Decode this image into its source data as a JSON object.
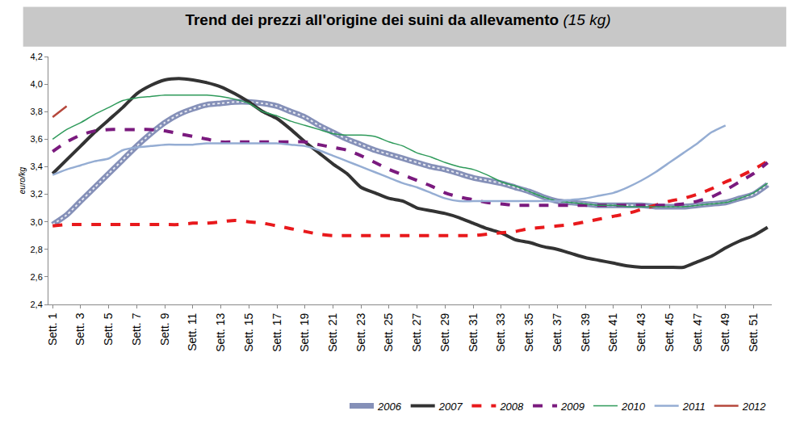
{
  "chart_data": {
    "type": "line",
    "title": "Trend dei prezzi all'origine dei suini da allevamento",
    "subtitle": "(15 kg)",
    "y_label": "euro/kg",
    "grid": false,
    "legend": "bottom",
    "categories": [
      "Sett. 1",
      null,
      "Sett. 3",
      null,
      "Sett. 5",
      null,
      "Sett. 7",
      null,
      "Sett. 9",
      null,
      "Sett. 11",
      null,
      "Sett. 13",
      null,
      "Sett. 15",
      null,
      "Sett. 17",
      null,
      "Sett. 19",
      null,
      "Sett. 21",
      null,
      "Sett. 23",
      null,
      "Sett. 25",
      null,
      "Sett. 27",
      null,
      "Sett. 29",
      null,
      "Sett. 31",
      null,
      "Sett. 33",
      null,
      "Sett. 35",
      null,
      "Sett. 37",
      null,
      "Sett. 39",
      null,
      "Sett. 41",
      null,
      "Sett. 43",
      null,
      "Sett. 45",
      null,
      "Sett. 47",
      null,
      "Sett. 49",
      null,
      "Sett. 51",
      null
    ],
    "ylim": [
      2.4,
      4.2
    ],
    "yticks": [
      {
        "value": 2.4,
        "label": "2,4"
      },
      {
        "value": 2.6,
        "label": "2,6"
      },
      {
        "value": 2.8,
        "label": "2,8"
      },
      {
        "value": 3.0,
        "label": "3,0"
      },
      {
        "value": 3.2,
        "label": "3,2"
      },
      {
        "value": 3.4,
        "label": "3,4"
      },
      {
        "value": 3.6,
        "label": "3,6"
      },
      {
        "value": 3.8,
        "label": "3,8"
      },
      {
        "value": 4.0,
        "label": "4,0"
      },
      {
        "value": 4.2,
        "label": "4,2"
      }
    ],
    "series": [
      {
        "name": "2006",
        "color": "#8590b8",
        "line_style": "hatched",
        "values": [
          2.98,
          3.05,
          3.15,
          3.25,
          3.35,
          3.45,
          3.55,
          3.64,
          3.72,
          3.78,
          3.82,
          3.85,
          3.86,
          3.87,
          3.87,
          3.86,
          3.84,
          3.8,
          3.76,
          3.7,
          3.65,
          3.6,
          3.56,
          3.52,
          3.49,
          3.46,
          3.43,
          3.4,
          3.38,
          3.35,
          3.32,
          3.3,
          3.28,
          3.25,
          3.22,
          3.18,
          3.15,
          3.14,
          3.13,
          3.12,
          3.12,
          3.12,
          3.12,
          3.11,
          3.11,
          3.11,
          3.12,
          3.13,
          3.14,
          3.17,
          3.2,
          3.27
        ]
      },
      {
        "name": "2007",
        "color": "#333333",
        "line_style": "solid",
        "values": [
          3.35,
          3.45,
          3.55,
          3.65,
          3.74,
          3.83,
          3.93,
          3.99,
          4.03,
          4.04,
          4.03,
          4.01,
          3.98,
          3.93,
          3.87,
          3.8,
          3.75,
          3.67,
          3.58,
          3.5,
          3.42,
          3.35,
          3.25,
          3.21,
          3.17,
          3.15,
          3.1,
          3.08,
          3.06,
          3.03,
          2.99,
          2.95,
          2.92,
          2.87,
          2.85,
          2.82,
          2.8,
          2.77,
          2.74,
          2.72,
          2.7,
          2.68,
          2.67,
          2.67,
          2.67,
          2.67,
          2.71,
          2.75,
          2.81,
          2.86,
          2.9,
          2.96
        ]
      },
      {
        "name": "2008",
        "color": "#e8191c",
        "line_style": "dash",
        "values": [
          2.97,
          2.98,
          2.98,
          2.98,
          2.98,
          2.98,
          2.98,
          2.98,
          2.98,
          2.98,
          2.99,
          2.99,
          3.0,
          3.01,
          3.0,
          2.99,
          2.97,
          2.95,
          2.93,
          2.91,
          2.9,
          2.9,
          2.9,
          2.9,
          2.9,
          2.9,
          2.9,
          2.9,
          2.9,
          2.9,
          2.9,
          2.91,
          2.92,
          2.93,
          2.95,
          2.96,
          2.97,
          2.98,
          3.0,
          3.02,
          3.04,
          3.06,
          3.09,
          3.12,
          3.15,
          3.17,
          3.2,
          3.24,
          3.29,
          3.33,
          3.38,
          3.44
        ]
      },
      {
        "name": "2009",
        "color": "#7a1a7e",
        "line_style": "dash",
        "values": [
          3.51,
          3.58,
          3.63,
          3.66,
          3.67,
          3.67,
          3.67,
          3.67,
          3.66,
          3.64,
          3.62,
          3.6,
          3.58,
          3.58,
          3.58,
          3.58,
          3.58,
          3.58,
          3.58,
          3.56,
          3.54,
          3.52,
          3.48,
          3.43,
          3.38,
          3.34,
          3.3,
          3.26,
          3.21,
          3.18,
          3.16,
          3.14,
          3.13,
          3.12,
          3.12,
          3.12,
          3.12,
          3.12,
          3.12,
          3.12,
          3.12,
          3.12,
          3.12,
          3.12,
          3.12,
          3.13,
          3.15,
          3.18,
          3.23,
          3.29,
          3.35,
          3.43
        ]
      },
      {
        "name": "2010",
        "color": "#2e9a5a",
        "line_style": "solid",
        "values": [
          3.6,
          3.67,
          3.72,
          3.78,
          3.83,
          3.88,
          3.9,
          3.91,
          3.92,
          3.92,
          3.92,
          3.92,
          3.91,
          3.89,
          3.86,
          3.8,
          3.77,
          3.73,
          3.7,
          3.67,
          3.64,
          3.63,
          3.63,
          3.62,
          3.58,
          3.55,
          3.5,
          3.47,
          3.43,
          3.4,
          3.38,
          3.34,
          3.29,
          3.26,
          3.22,
          3.18,
          3.15,
          3.14,
          3.13,
          3.12,
          3.12,
          3.11,
          3.11,
          3.11,
          3.11,
          3.11,
          3.12,
          3.13,
          3.14,
          3.17,
          3.21,
          3.28
        ]
      },
      {
        "name": "2011",
        "color": "#95add3",
        "line_style": "solid",
        "values": [
          3.34,
          3.38,
          3.41,
          3.44,
          3.46,
          3.52,
          3.54,
          3.55,
          3.56,
          3.56,
          3.56,
          3.57,
          3.57,
          3.57,
          3.57,
          3.57,
          3.57,
          3.56,
          3.55,
          3.52,
          3.48,
          3.44,
          3.4,
          3.36,
          3.32,
          3.28,
          3.25,
          3.21,
          3.17,
          3.15,
          3.15,
          3.15,
          3.15,
          3.15,
          3.15,
          3.15,
          3.15,
          3.16,
          3.17,
          3.19,
          3.21,
          3.25,
          3.3,
          3.36,
          3.43,
          3.5,
          3.57,
          3.65,
          3.7,
          null,
          null,
          null
        ]
      },
      {
        "name": "2012",
        "color": "#b5473b",
        "line_style": "solid",
        "values": [
          3.76,
          3.84,
          null,
          null,
          null,
          null,
          null,
          null,
          null,
          null,
          null,
          null,
          null,
          null,
          null,
          null,
          null,
          null,
          null,
          null,
          null,
          null,
          null,
          null,
          null,
          null,
          null,
          null,
          null,
          null,
          null,
          null,
          null,
          null,
          null,
          null,
          null,
          null,
          null,
          null,
          null,
          null,
          null,
          null,
          null,
          null,
          null,
          null,
          null,
          null,
          null,
          null
        ]
      }
    ]
  }
}
